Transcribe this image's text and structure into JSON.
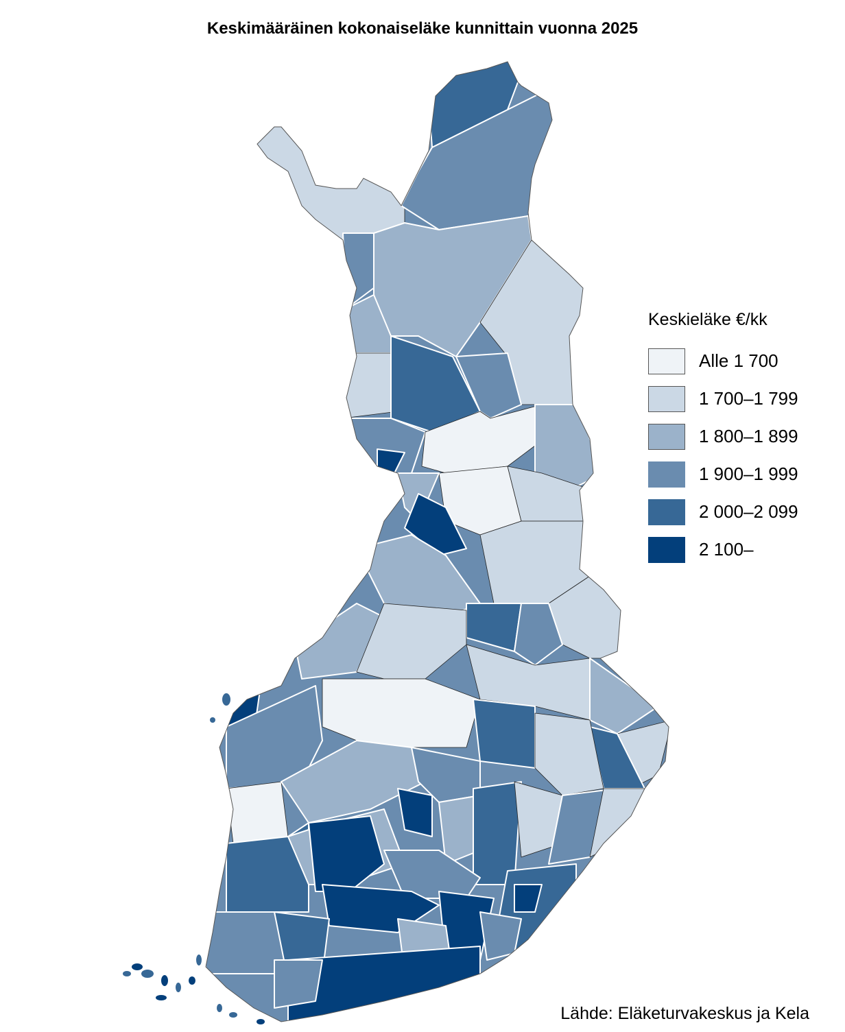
{
  "title": "Keskimääräinen kokonaiseläke kunnittain vuonna 2025",
  "legend": {
    "title": "Keskieläke €/kk",
    "classes": [
      {
        "label": "Alle 1 700",
        "color": "#eff3f7"
      },
      {
        "label": "1 700–1 799",
        "color": "#cbd8e5"
      },
      {
        "label": "1 800–1 899",
        "color": "#9bb2ca"
      },
      {
        "label": "1 900–1 999",
        "color": "#6a8caf"
      },
      {
        "label": "2 000–2 099",
        "color": "#376896"
      },
      {
        "label": "2 100–",
        "color": "#033f7b"
      }
    ]
  },
  "source": "Lähde: Eläketurvakeskus ja Kela"
}
